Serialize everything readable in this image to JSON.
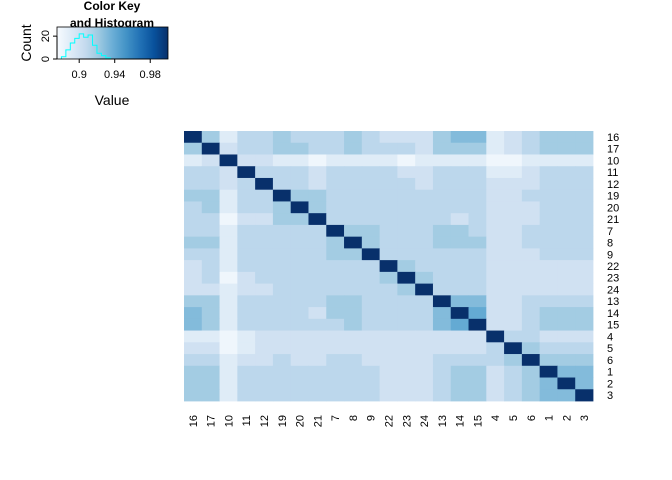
{
  "chart_data": [
    {
      "type": "histogram",
      "title": "Color Key",
      "subtitle": "and Histogram",
      "xlabel": "Value",
      "ylabel": "Count",
      "xlim": [
        0.875,
        1.0
      ],
      "ylim": [
        0,
        28
      ],
      "xticks": [
        0.9,
        0.94,
        0.98
      ],
      "yticks": [
        0,
        20
      ],
      "line_color": "#00ffff",
      "gradient": [
        "#f7fbff",
        "#deebf7",
        "#c6dbef",
        "#9ecae1",
        "#6baed6",
        "#4292c6",
        "#2171b5",
        "#08519c",
        "#08306b"
      ],
      "bins": [
        0.88,
        0.885,
        0.89,
        0.895,
        0.9,
        0.905,
        0.91,
        0.915,
        0.92,
        0.925,
        0.93
      ],
      "counts": [
        2,
        8,
        14,
        18,
        22,
        19,
        21,
        12,
        5,
        3,
        1
      ]
    },
    {
      "type": "heatmap",
      "labels": [
        "16",
        "17",
        "10",
        "11",
        "12",
        "19",
        "20",
        "21",
        "7",
        "8",
        "9",
        "22",
        "23",
        "24",
        "13",
        "14",
        "15",
        "4",
        "5",
        "6",
        "1",
        "2",
        "3"
      ],
      "colorscale": "Blues",
      "vmin": 0.875,
      "vmax": 1.0,
      "values": [
        [
          1.0,
          0.92,
          0.89,
          0.91,
          0.91,
          0.92,
          0.91,
          0.91,
          0.91,
          0.92,
          0.91,
          0.9,
          0.9,
          0.9,
          0.92,
          0.93,
          0.93,
          0.89,
          0.9,
          0.91,
          0.92,
          0.92,
          0.92
        ],
        [
          0.92,
          1.0,
          0.9,
          0.91,
          0.91,
          0.92,
          0.92,
          0.91,
          0.91,
          0.92,
          0.91,
          0.91,
          0.91,
          0.9,
          0.92,
          0.92,
          0.92,
          0.89,
          0.9,
          0.91,
          0.92,
          0.92,
          0.92
        ],
        [
          0.89,
          0.9,
          1.0,
          0.9,
          0.9,
          0.89,
          0.89,
          0.88,
          0.89,
          0.89,
          0.89,
          0.89,
          0.88,
          0.89,
          0.89,
          0.89,
          0.89,
          0.88,
          0.88,
          0.89,
          0.89,
          0.89,
          0.89
        ],
        [
          0.91,
          0.91,
          0.9,
          1.0,
          0.91,
          0.91,
          0.91,
          0.9,
          0.91,
          0.91,
          0.91,
          0.91,
          0.9,
          0.9,
          0.91,
          0.91,
          0.91,
          0.89,
          0.89,
          0.9,
          0.91,
          0.91,
          0.91
        ],
        [
          0.91,
          0.91,
          0.9,
          0.91,
          1.0,
          0.91,
          0.91,
          0.9,
          0.91,
          0.91,
          0.91,
          0.91,
          0.91,
          0.9,
          0.91,
          0.91,
          0.91,
          0.9,
          0.9,
          0.9,
          0.91,
          0.91,
          0.91
        ],
        [
          0.92,
          0.92,
          0.89,
          0.91,
          0.91,
          1.0,
          0.92,
          0.92,
          0.91,
          0.91,
          0.91,
          0.91,
          0.91,
          0.91,
          0.91,
          0.91,
          0.91,
          0.9,
          0.9,
          0.91,
          0.91,
          0.91,
          0.91
        ],
        [
          0.91,
          0.92,
          0.89,
          0.91,
          0.91,
          0.92,
          1.0,
          0.92,
          0.91,
          0.91,
          0.91,
          0.91,
          0.91,
          0.91,
          0.91,
          0.91,
          0.91,
          0.9,
          0.9,
          0.9,
          0.91,
          0.91,
          0.91
        ],
        [
          0.91,
          0.91,
          0.88,
          0.9,
          0.9,
          0.92,
          0.92,
          1.0,
          0.91,
          0.91,
          0.91,
          0.91,
          0.91,
          0.91,
          0.91,
          0.9,
          0.91,
          0.9,
          0.9,
          0.9,
          0.91,
          0.91,
          0.91
        ],
        [
          0.91,
          0.91,
          0.89,
          0.91,
          0.91,
          0.91,
          0.91,
          0.91,
          1.0,
          0.92,
          0.92,
          0.91,
          0.91,
          0.91,
          0.92,
          0.92,
          0.91,
          0.9,
          0.9,
          0.91,
          0.91,
          0.91,
          0.91
        ],
        [
          0.92,
          0.92,
          0.89,
          0.91,
          0.91,
          0.91,
          0.91,
          0.91,
          0.92,
          1.0,
          0.92,
          0.91,
          0.91,
          0.91,
          0.92,
          0.92,
          0.92,
          0.9,
          0.9,
          0.91,
          0.91,
          0.91,
          0.91
        ],
        [
          0.91,
          0.91,
          0.89,
          0.91,
          0.91,
          0.91,
          0.91,
          0.91,
          0.92,
          0.92,
          1.0,
          0.91,
          0.91,
          0.91,
          0.91,
          0.91,
          0.91,
          0.9,
          0.9,
          0.9,
          0.91,
          0.91,
          0.91
        ],
        [
          0.9,
          0.91,
          0.89,
          0.91,
          0.91,
          0.91,
          0.91,
          0.91,
          0.91,
          0.91,
          0.91,
          1.0,
          0.92,
          0.91,
          0.91,
          0.91,
          0.91,
          0.9,
          0.9,
          0.9,
          0.9,
          0.9,
          0.9
        ],
        [
          0.9,
          0.91,
          0.88,
          0.9,
          0.91,
          0.91,
          0.91,
          0.91,
          0.91,
          0.91,
          0.91,
          0.92,
          1.0,
          0.92,
          0.91,
          0.91,
          0.91,
          0.9,
          0.9,
          0.9,
          0.9,
          0.9,
          0.9
        ],
        [
          0.9,
          0.9,
          0.89,
          0.9,
          0.9,
          0.91,
          0.91,
          0.91,
          0.91,
          0.91,
          0.91,
          0.91,
          0.92,
          1.0,
          0.91,
          0.91,
          0.91,
          0.9,
          0.9,
          0.9,
          0.9,
          0.9,
          0.9
        ],
        [
          0.92,
          0.92,
          0.89,
          0.91,
          0.91,
          0.91,
          0.91,
          0.91,
          0.92,
          0.92,
          0.91,
          0.91,
          0.91,
          0.91,
          1.0,
          0.93,
          0.93,
          0.9,
          0.9,
          0.91,
          0.91,
          0.91,
          0.91
        ],
        [
          0.93,
          0.92,
          0.89,
          0.91,
          0.91,
          0.91,
          0.91,
          0.9,
          0.92,
          0.92,
          0.91,
          0.91,
          0.91,
          0.91,
          0.93,
          1.0,
          0.94,
          0.9,
          0.9,
          0.91,
          0.92,
          0.92,
          0.92
        ],
        [
          0.93,
          0.92,
          0.89,
          0.91,
          0.91,
          0.91,
          0.91,
          0.91,
          0.91,
          0.92,
          0.91,
          0.91,
          0.91,
          0.91,
          0.93,
          0.94,
          1.0,
          0.9,
          0.9,
          0.91,
          0.92,
          0.92,
          0.92
        ],
        [
          0.89,
          0.89,
          0.88,
          0.89,
          0.9,
          0.9,
          0.9,
          0.9,
          0.9,
          0.9,
          0.9,
          0.9,
          0.9,
          0.9,
          0.9,
          0.9,
          0.9,
          1.0,
          0.91,
          0.91,
          0.9,
          0.9,
          0.9
        ],
        [
          0.9,
          0.9,
          0.88,
          0.89,
          0.9,
          0.9,
          0.9,
          0.9,
          0.9,
          0.9,
          0.9,
          0.9,
          0.9,
          0.9,
          0.9,
          0.9,
          0.9,
          0.91,
          1.0,
          0.92,
          0.91,
          0.91,
          0.91
        ],
        [
          0.91,
          0.91,
          0.89,
          0.9,
          0.9,
          0.91,
          0.9,
          0.9,
          0.91,
          0.91,
          0.9,
          0.9,
          0.9,
          0.9,
          0.91,
          0.91,
          0.91,
          0.91,
          0.92,
          1.0,
          0.92,
          0.92,
          0.92
        ],
        [
          0.92,
          0.92,
          0.89,
          0.91,
          0.91,
          0.91,
          0.91,
          0.91,
          0.91,
          0.91,
          0.91,
          0.9,
          0.9,
          0.9,
          0.91,
          0.92,
          0.92,
          0.9,
          0.91,
          0.92,
          1.0,
          0.93,
          0.93
        ],
        [
          0.92,
          0.92,
          0.89,
          0.91,
          0.91,
          0.91,
          0.91,
          0.91,
          0.91,
          0.91,
          0.91,
          0.9,
          0.9,
          0.9,
          0.91,
          0.92,
          0.92,
          0.9,
          0.91,
          0.92,
          0.93,
          1.0,
          0.93
        ],
        [
          0.92,
          0.92,
          0.89,
          0.91,
          0.91,
          0.91,
          0.91,
          0.91,
          0.91,
          0.91,
          0.91,
          0.9,
          0.9,
          0.9,
          0.91,
          0.92,
          0.92,
          0.9,
          0.91,
          0.92,
          0.93,
          0.93,
          1.0
        ]
      ]
    }
  ]
}
